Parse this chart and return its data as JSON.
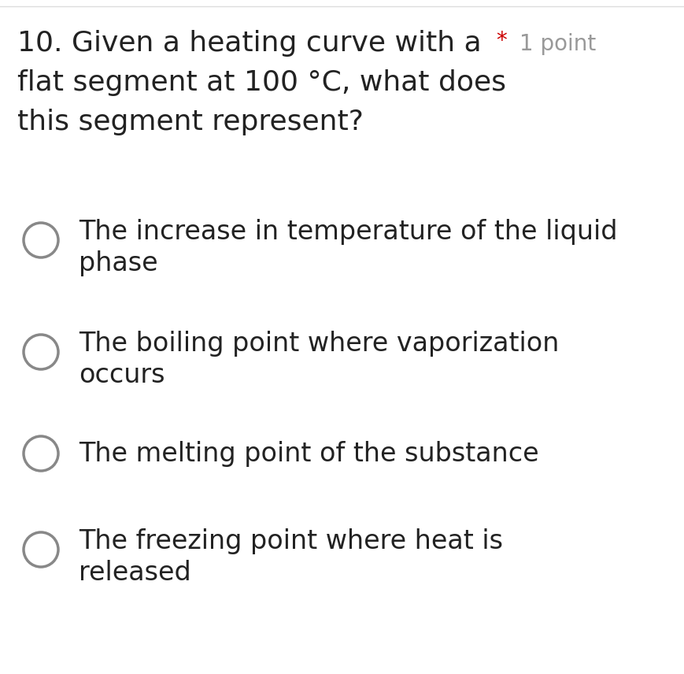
{
  "background_color": "#ffffff",
  "question_number": "10.",
  "question_text_line1": "Given a heating curve with a",
  "question_text_line2": "flat segment at 100 °C, what does",
  "question_text_line3": "this segment represent?",
  "star_color": "#cc0000",
  "point_label": "1 point",
  "point_color": "#999999",
  "options": [
    {
      "line1": "The increase in temperature of the liquid",
      "line2": "phase"
    },
    {
      "line1": "The boiling point where vaporization",
      "line2": "occurs"
    },
    {
      "line1": "The melting point of the substance",
      "line2": null
    },
    {
      "line1": "The freezing point where heat is",
      "line2": "released"
    }
  ],
  "circle_color": "#888888",
  "question_fontsize": 26,
  "option_fontsize": 24,
  "star_fontsize": 20,
  "point_fontsize": 20,
  "top_border_color": "#dddddd",
  "text_color": "#222222"
}
